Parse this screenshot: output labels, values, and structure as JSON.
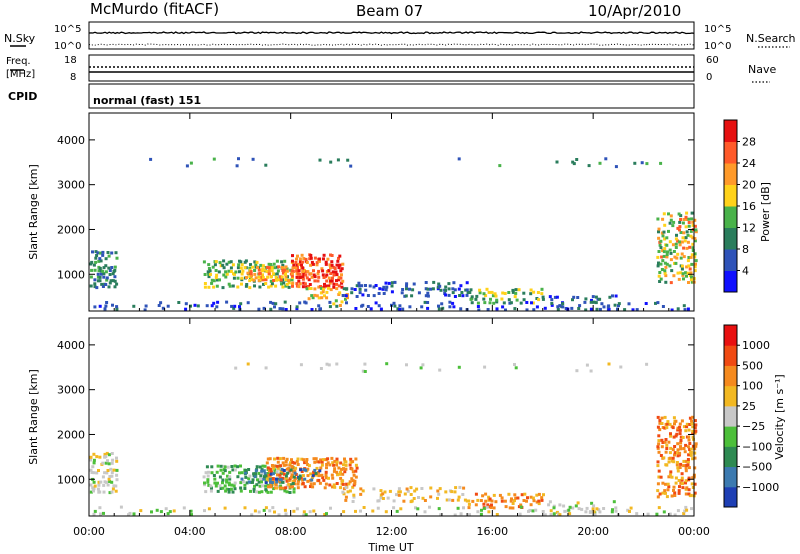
{
  "header": {
    "station": "McMurdo (fitACF)",
    "beam": "Beam 07",
    "date": "10/Apr/2010"
  },
  "status": {
    "nsky_label": "N.Sky",
    "nsearch_label": "N.Search",
    "nsky_ticks": [
      "10^5",
      "10^0"
    ],
    "nsearch_ticks": [
      "10^5",
      "10^0"
    ],
    "freq_label_1": "Freq.",
    "freq_label_2": "[MHz]",
    "freq_ticks": [
      "18",
      "8"
    ],
    "nave_label": "Nave",
    "nave_ticks": [
      "60",
      "0"
    ],
    "cpid_label": "CPID",
    "cpid_value": "normal (fast) 151"
  },
  "chart_data": [
    {
      "type": "heatmap",
      "title": "",
      "ylabel": "Slant Range [km]",
      "ylim": [
        180,
        4600
      ],
      "yticks": [
        "1000",
        "2000",
        "3000",
        "4000"
      ],
      "colorbar_label": "Power [dB]",
      "colorbar_ticks": [
        "4",
        "8",
        "12",
        "16",
        "20",
        "24",
        "28"
      ],
      "colorbar_colors": [
        "#1010ff",
        "#2f53b8",
        "#2a7d5c",
        "#49b24a",
        "#ffd21a",
        "#ff9a2a",
        "#ff5a2a",
        "#e61010"
      ]
    },
    {
      "type": "heatmap",
      "title": "",
      "ylabel": "Slant Range [km]",
      "ylim": [
        180,
        4600
      ],
      "yticks": [
        "1000",
        "2000",
        "3000",
        "4000"
      ],
      "colorbar_label": "Velocity [m s⁻¹]",
      "colorbar_ticks": [
        "1000",
        "500",
        "100",
        "25",
        "−25",
        "−100",
        "−500",
        "−1000"
      ],
      "colorbar_colors": [
        "#1e3fb4",
        "#3c7ab0",
        "#2e8a52",
        "#4cbf3a",
        "#c8c8c8",
        "#f2b822",
        "#f58a1e",
        "#f04a12",
        "#e81010"
      ]
    }
  ],
  "xaxis": {
    "label": "Time UT",
    "ticks": [
      "00:00",
      "04:00",
      "08:00",
      "12:00",
      "16:00",
      "20:00",
      "00:00"
    ]
  }
}
